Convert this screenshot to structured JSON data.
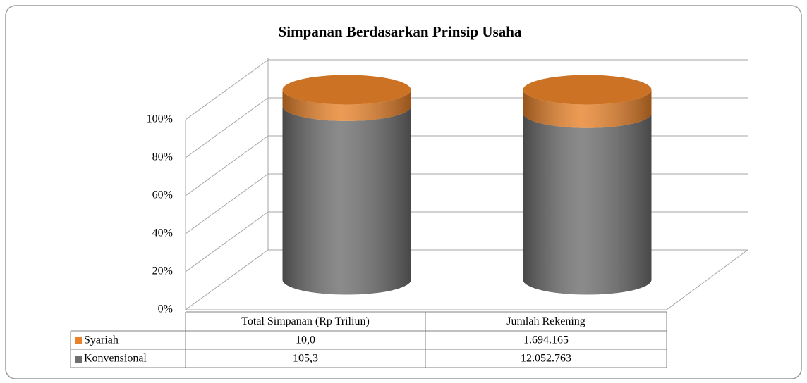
{
  "chart_data": {
    "type": "bar",
    "stacked": "percent",
    "title": "Simpanan Berdasarkan Prinsip Usaha",
    "categories": [
      "Total Simpanan (Rp Triliun)",
      "Jumlah Rekening"
    ],
    "series": [
      {
        "name": "Syariah",
        "color": "#e8822a",
        "values": [
          10.0,
          1694165
        ],
        "value_labels": [
          "10,0",
          "1.694.165"
        ]
      },
      {
        "name": "Konvensional",
        "color": "#6e6e6e",
        "values": [
          105.3,
          12052763
        ],
        "value_labels": [
          "105,3",
          "12.052.763"
        ]
      }
    ],
    "ylim": [
      0,
      100
    ],
    "yticks": [
      {
        "value": 0,
        "label": "0%"
      },
      {
        "value": 20,
        "label": "20%"
      },
      {
        "value": 40,
        "label": "40%"
      },
      {
        "value": 60,
        "label": "60%"
      },
      {
        "value": 80,
        "label": "80%"
      },
      {
        "value": 100,
        "label": "100%"
      }
    ],
    "grid": true
  }
}
